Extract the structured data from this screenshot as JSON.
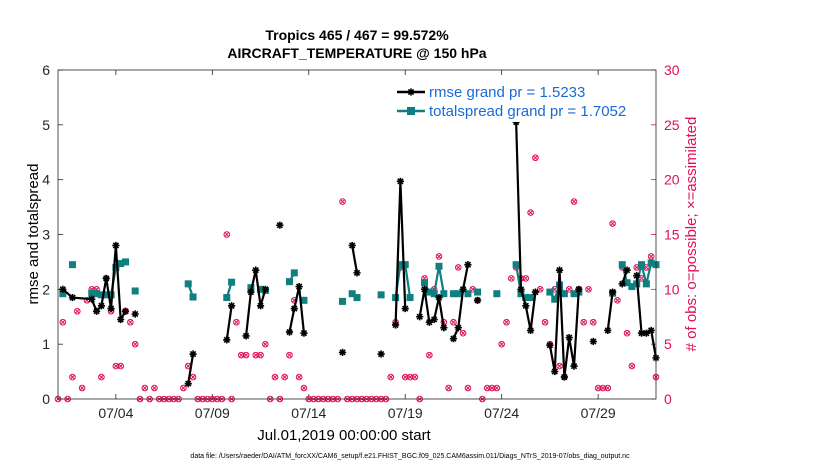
{
  "chart_data": {
    "type": "line",
    "title": "Tropics 465 / 467 = 99.572%",
    "subtitle": "AIRCRAFT_TEMPERATURE @ 150 hPa",
    "xlabel": "Jul.01,2019 00:00:00 start",
    "ylabel": "rmse and totalspread",
    "y2label": "# of obs: o=possible; ×=assimilated",
    "footnote": "data file: /Users/raeder/DAI/ATM_forcXX/CAM6_setup/f.e21.FHIST_BGC.f09_025.CAM6assim.011/Diags_NTrS_2019-07/obs_diag_output.nc",
    "xlim": [
      1,
      32
    ],
    "ylim": [
      0,
      6
    ],
    "y2lim": [
      0,
      30
    ],
    "grid": false,
    "legend_position": "top-right",
    "x_ticks": [
      4,
      9,
      14,
      19,
      24,
      29
    ],
    "x_tick_labels": [
      "07/04",
      "07/09",
      "07/14",
      "07/19",
      "07/24",
      "07/29"
    ],
    "y_ticks": [
      0,
      1,
      2,
      3,
      4,
      5,
      6
    ],
    "y2_ticks": [
      0,
      5,
      10,
      15,
      20,
      25,
      30
    ],
    "colors": {
      "rmse": "#000000",
      "totalspread": "#0f7f7f",
      "obs": "#e0105a"
    },
    "series": [
      {
        "name": "rmse",
        "legend": "rmse grand pr = 1.5233",
        "segments": [
          [
            [
              1.25,
              2.0
            ],
            [
              1.75,
              1.85
            ],
            [
              2.75,
              1.82
            ],
            [
              3.0,
              1.6
            ],
            [
              3.25,
              1.7
            ],
            [
              3.5,
              2.2
            ],
            [
              3.75,
              1.65
            ],
            [
              4.0,
              2.8
            ],
            [
              4.25,
              1.45
            ],
            [
              4.5,
              1.6
            ]
          ],
          [
            [
              5.0,
              1.55
            ]
          ],
          [
            [
              7.75,
              0.28
            ],
            [
              8.0,
              0.82
            ]
          ],
          [
            [
              9.75,
              1.08
            ],
            [
              10.0,
              1.7
            ]
          ],
          [
            [
              10.75,
              1.15
            ],
            [
              11.0,
              1.95
            ],
            [
              11.25,
              2.35
            ],
            [
              11.5,
              1.7
            ],
            [
              11.75,
              2.0
            ]
          ],
          [
            [
              12.5,
              3.17
            ]
          ],
          [
            [
              13.0,
              1.22
            ],
            [
              13.25,
              1.65
            ],
            [
              13.5,
              2.05
            ],
            [
              13.75,
              1.2
            ]
          ],
          [
            [
              15.75,
              0.85
            ]
          ],
          [
            [
              16.25,
              2.8
            ],
            [
              16.5,
              2.3
            ]
          ],
          [
            [
              17.75,
              0.82
            ]
          ],
          [
            [
              18.5,
              1.35
            ],
            [
              18.75,
              3.97
            ],
            [
              19.0,
              1.65
            ]
          ],
          [
            [
              19.75,
              1.5
            ],
            [
              20.0,
              2.0
            ],
            [
              20.25,
              1.4
            ],
            [
              20.5,
              1.45
            ],
            [
              20.75,
              1.85
            ],
            [
              21.0,
              1.3
            ]
          ],
          [
            [
              21.5,
              1.1
            ],
            [
              21.75,
              1.3
            ],
            [
              22.0,
              2.0
            ],
            [
              22.25,
              2.45
            ]
          ],
          [
            [
              22.75,
              1.8
            ]
          ],
          [
            [
              24.75,
              5.05
            ],
            [
              25.0,
              2.0
            ],
            [
              25.25,
              1.7
            ],
            [
              25.5,
              1.25
            ],
            [
              25.75,
              1.95
            ]
          ],
          [
            [
              26.5,
              0.98
            ],
            [
              26.75,
              0.5
            ],
            [
              27.0,
              2.35
            ],
            [
              27.25,
              0.4
            ],
            [
              27.5,
              1.12
            ],
            [
              27.75,
              0.6
            ],
            [
              28.0,
              2.0
            ]
          ],
          [
            [
              28.75,
              1.05
            ]
          ],
          [
            [
              29.5,
              1.25
            ],
            [
              29.75,
              1.95
            ]
          ],
          [
            [
              30.25,
              2.1
            ],
            [
              30.5,
              2.35
            ]
          ],
          [
            [
              31.0,
              2.25
            ],
            [
              31.25,
              1.2
            ],
            [
              31.5,
              1.2
            ],
            [
              31.75,
              1.25
            ],
            [
              32.0,
              0.75
            ]
          ]
        ]
      },
      {
        "name": "totalspread",
        "legend": "totalspread grand pr = 1.7052",
        "segments": [
          [
            [
              1.25,
              1.92
            ]
          ],
          [
            [
              1.75,
              2.45
            ]
          ],
          [
            [
              2.75,
              1.93
            ],
            [
              3.0,
              1.92
            ],
            [
              3.25,
              1.9
            ],
            [
              3.5,
              1.9
            ],
            [
              3.75,
              1.9
            ],
            [
              4.0,
              2.4
            ],
            [
              4.25,
              2.47
            ],
            [
              4.5,
              2.5
            ]
          ],
          [
            [
              5.0,
              1.97
            ]
          ],
          [
            [
              7.75,
              2.1
            ],
            [
              8.0,
              1.86
            ]
          ],
          [
            [
              9.75,
              1.85
            ],
            [
              10.0,
              2.13
            ]
          ],
          [
            [
              11.0,
              2.03
            ]
          ],
          [
            [
              11.5,
              2.0
            ],
            [
              11.75,
              1.98
            ]
          ],
          [
            [
              13.0,
              2.14
            ],
            [
              13.25,
              2.3
            ]
          ],
          [
            [
              13.75,
              1.8
            ]
          ],
          [
            [
              15.75,
              1.78
            ]
          ],
          [
            [
              16.25,
              1.92
            ],
            [
              16.5,
              1.85
            ]
          ],
          [
            [
              17.75,
              1.9
            ]
          ],
          [
            [
              18.5,
              1.85
            ],
            [
              18.75,
              2.45
            ],
            [
              19.0,
              2.45
            ],
            [
              19.25,
              1.85
            ]
          ],
          [
            [
              20.0,
              2.12
            ],
            [
              20.25,
              1.95
            ],
            [
              20.5,
              1.92
            ],
            [
              20.75,
              2.42
            ],
            [
              21.0,
              1.92
            ]
          ],
          [
            [
              21.5,
              1.92
            ],
            [
              21.75,
              1.92
            ]
          ],
          [
            [
              22.25,
              1.92
            ]
          ],
          [
            [
              22.75,
              1.95
            ]
          ],
          [
            [
              23.75,
              1.92
            ]
          ],
          [
            [
              24.75,
              2.45
            ],
            [
              25.0,
              1.92
            ],
            [
              25.25,
              1.85
            ],
            [
              25.5,
              1.85
            ]
          ],
          [
            [
              26.5,
              1.95
            ],
            [
              26.75,
              1.82
            ],
            [
              27.0,
              2.08
            ],
            [
              27.25,
              1.92
            ]
          ],
          [
            [
              27.75,
              1.92
            ],
            [
              28.0,
              1.95
            ]
          ],
          [
            [
              29.75,
              1.93
            ]
          ],
          [
            [
              30.25,
              2.45
            ],
            [
              30.5,
              2.12
            ],
            [
              30.75,
              2.05
            ]
          ],
          [
            [
              31.0,
              2.1
            ],
            [
              31.25,
              2.45
            ],
            [
              31.5,
              2.1
            ],
            [
              31.75,
              2.48
            ]
          ],
          [
            [
              32.0,
              2.45
            ]
          ]
        ]
      }
    ],
    "obs": [
      {
        "x": 1.0,
        "y": 0
      },
      {
        "x": 1.25,
        "y": 7
      },
      {
        "x": 1.5,
        "y": 0
      },
      {
        "x": 1.75,
        "y": 2
      },
      {
        "x": 2.0,
        "y": 8
      },
      {
        "x": 2.25,
        "y": 1
      },
      {
        "x": 2.5,
        "y": 9
      },
      {
        "x": 2.75,
        "y": 10
      },
      {
        "x": 3.0,
        "y": 10
      },
      {
        "x": 3.25,
        "y": 2
      },
      {
        "x": 3.5,
        "y": 11
      },
      {
        "x": 3.75,
        "y": 8
      },
      {
        "x": 4.0,
        "y": 3
      },
      {
        "x": 4.25,
        "y": 3
      },
      {
        "x": 4.5,
        "y": 8
      },
      {
        "x": 4.75,
        "y": 7
      },
      {
        "x": 5.0,
        "y": 5
      },
      {
        "x": 5.25,
        "y": 0
      },
      {
        "x": 5.5,
        "y": 1
      },
      {
        "x": 5.75,
        "y": 0
      },
      {
        "x": 6.0,
        "y": 1
      },
      {
        "x": 6.25,
        "y": 0
      },
      {
        "x": 6.5,
        "y": 0
      },
      {
        "x": 6.75,
        "y": 0
      },
      {
        "x": 7.0,
        "y": 0
      },
      {
        "x": 7.25,
        "y": 0
      },
      {
        "x": 7.5,
        "y": 1
      },
      {
        "x": 7.75,
        "y": 3
      },
      {
        "x": 8.0,
        "y": 2
      },
      {
        "x": 8.25,
        "y": 0
      },
      {
        "x": 8.5,
        "y": 0
      },
      {
        "x": 8.75,
        "y": 0
      },
      {
        "x": 9.0,
        "y": 0
      },
      {
        "x": 9.25,
        "y": 0
      },
      {
        "x": 9.5,
        "y": 0
      },
      {
        "x": 9.75,
        "y": 15
      },
      {
        "x": 10.0,
        "y": 0
      },
      {
        "x": 10.25,
        "y": 7
      },
      {
        "x": 10.5,
        "y": 4
      },
      {
        "x": 10.75,
        "y": 4
      },
      {
        "x": 11.0,
        "y": 10
      },
      {
        "x": 11.25,
        "y": 4
      },
      {
        "x": 11.5,
        "y": 4
      },
      {
        "x": 11.75,
        "y": 5
      },
      {
        "x": 12.0,
        "y": 0
      },
      {
        "x": 12.25,
        "y": 2
      },
      {
        "x": 12.5,
        "y": 0
      },
      {
        "x": 12.75,
        "y": 2
      },
      {
        "x": 13.0,
        "y": 4
      },
      {
        "x": 13.25,
        "y": 9
      },
      {
        "x": 13.5,
        "y": 2
      },
      {
        "x": 13.75,
        "y": 1
      },
      {
        "x": 14.0,
        "y": 0
      },
      {
        "x": 14.25,
        "y": 0
      },
      {
        "x": 14.5,
        "y": 0
      },
      {
        "x": 14.75,
        "y": 0
      },
      {
        "x": 15.0,
        "y": 0
      },
      {
        "x": 15.25,
        "y": 0
      },
      {
        "x": 15.5,
        "y": 0
      },
      {
        "x": 15.75,
        "y": 18
      },
      {
        "x": 16.0,
        "y": 0
      },
      {
        "x": 16.25,
        "y": 0
      },
      {
        "x": 16.5,
        "y": 0
      },
      {
        "x": 16.75,
        "y": 0
      },
      {
        "x": 17.0,
        "y": 0
      },
      {
        "x": 17.25,
        "y": 0
      },
      {
        "x": 17.5,
        "y": 0
      },
      {
        "x": 17.75,
        "y": 0
      },
      {
        "x": 18.0,
        "y": 0
      },
      {
        "x": 18.25,
        "y": 2
      },
      {
        "x": 18.5,
        "y": 7
      },
      {
        "x": 18.75,
        "y": 12
      },
      {
        "x": 19.0,
        "y": 2
      },
      {
        "x": 19.25,
        "y": 2
      },
      {
        "x": 19.5,
        "y": 2
      },
      {
        "x": 19.75,
        "y": 0
      },
      {
        "x": 20.0,
        "y": 11
      },
      {
        "x": 20.25,
        "y": 4
      },
      {
        "x": 20.5,
        "y": 10
      },
      {
        "x": 20.75,
        "y": 13
      },
      {
        "x": 21.0,
        "y": 7
      },
      {
        "x": 21.25,
        "y": 1
      },
      {
        "x": 21.5,
        "y": 7
      },
      {
        "x": 21.75,
        "y": 12
      },
      {
        "x": 22.0,
        "y": 6
      },
      {
        "x": 22.25,
        "y": 1
      },
      {
        "x": 22.5,
        "y": 10
      },
      {
        "x": 22.75,
        "y": 9
      },
      {
        "x": 23.0,
        "y": 0
      },
      {
        "x": 23.25,
        "y": 1
      },
      {
        "x": 23.5,
        "y": 1
      },
      {
        "x": 23.75,
        "y": 1
      },
      {
        "x": 24.0,
        "y": 5
      },
      {
        "x": 24.25,
        "y": 7
      },
      {
        "x": 24.5,
        "y": 11
      },
      {
        "x": 24.75,
        "y": 12
      },
      {
        "x": 25.0,
        "y": 11
      },
      {
        "x": 25.25,
        "y": 11
      },
      {
        "x": 25.5,
        "y": 17
      },
      {
        "x": 25.75,
        "y": 22
      },
      {
        "x": 26.0,
        "y": 10
      },
      {
        "x": 26.25,
        "y": 7
      },
      {
        "x": 26.5,
        "y": 5
      },
      {
        "x": 26.75,
        "y": 10
      },
      {
        "x": 27.0,
        "y": 3
      },
      {
        "x": 27.25,
        "y": 2
      },
      {
        "x": 27.5,
        "y": 10
      },
      {
        "x": 27.75,
        "y": 18
      },
      {
        "x": 28.0,
        "y": 10
      },
      {
        "x": 28.25,
        "y": 7
      },
      {
        "x": 28.5,
        "y": 10
      },
      {
        "x": 28.75,
        "y": 7
      },
      {
        "x": 29.0,
        "y": 1
      },
      {
        "x": 29.25,
        "y": 1
      },
      {
        "x": 29.5,
        "y": 1
      },
      {
        "x": 29.75,
        "y": 16
      },
      {
        "x": 30.0,
        "y": 9
      },
      {
        "x": 30.25,
        "y": 12
      },
      {
        "x": 30.5,
        "y": 6
      },
      {
        "x": 30.75,
        "y": 3
      },
      {
        "x": 31.0,
        "y": 12
      },
      {
        "x": 31.25,
        "y": 11
      },
      {
        "x": 31.5,
        "y": 12
      },
      {
        "x": 31.75,
        "y": 13
      },
      {
        "x": 32.0,
        "y": 2
      }
    ]
  }
}
